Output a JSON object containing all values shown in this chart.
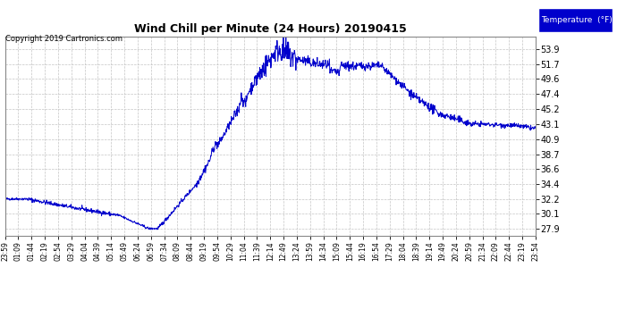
{
  "title": "Wind Chill per Minute (24 Hours) 20190415",
  "copyright_text": "Copyright 2019 Cartronics.com",
  "legend_label": "Temperature  (°F)",
  "line_color": "#0000CC",
  "background_color": "#ffffff",
  "grid_color": "#bbbbbb",
  "yticks": [
    27.9,
    30.1,
    32.2,
    34.4,
    36.6,
    38.7,
    40.9,
    43.1,
    45.2,
    47.4,
    49.6,
    51.7,
    53.9
  ],
  "ylim": [
    26.8,
    55.8
  ],
  "x_labels": [
    "23:59",
    "01:09",
    "01:44",
    "02:19",
    "02:54",
    "03:29",
    "04:04",
    "04:39",
    "05:14",
    "05:49",
    "06:24",
    "06:59",
    "07:34",
    "08:09",
    "08:44",
    "09:19",
    "09:54",
    "10:29",
    "11:04",
    "11:39",
    "12:14",
    "12:49",
    "13:24",
    "13:59",
    "14:34",
    "15:09",
    "15:44",
    "16:19",
    "16:54",
    "17:29",
    "18:04",
    "18:39",
    "19:14",
    "19:49",
    "20:24",
    "20:59",
    "21:34",
    "22:09",
    "22:44",
    "23:19",
    "23:54"
  ],
  "n_points": 1440,
  "figsize": [
    6.9,
    3.75
  ],
  "dpi": 100
}
